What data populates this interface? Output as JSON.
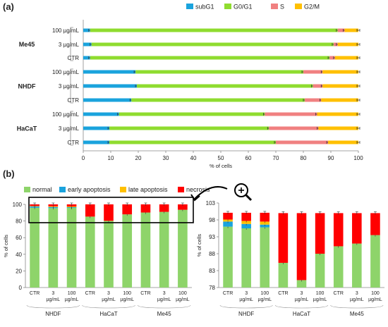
{
  "chart_data": [
    {
      "panel": "(a)",
      "type": "bar",
      "orientation": "horizontal",
      "stacked": true,
      "xlabel": "% of cells",
      "xlim": [
        0,
        100
      ],
      "xticks": [
        0,
        10,
        20,
        30,
        40,
        50,
        60,
        70,
        80,
        90,
        100
      ],
      "legend_position": "top",
      "groups": [
        {
          "name": "Me45",
          "categories": [
            "100 µg/mL",
            "3 µg/mL",
            "CTR"
          ]
        },
        {
          "name": "NHDF",
          "categories": [
            "100 µg/mL",
            "3 µg/mL",
            "CTR"
          ]
        },
        {
          "name": "HaCaT",
          "categories": [
            "100 µg/mL",
            "3 µg/mL",
            "CTR"
          ]
        }
      ],
      "series": [
        {
          "name": "subG1",
          "color": "#1aa3dd",
          "values": [
            2.5,
            3,
            2.5,
            19,
            19.5,
            17.5,
            13,
            9.5,
            9.5
          ]
        },
        {
          "name": "G0/G1",
          "color": "#8fdc2f",
          "values": [
            90,
            88,
            87,
            61,
            64,
            63,
            53,
            58,
            60.5
          ]
        },
        {
          "name": "S",
          "color": "#f08080",
          "values": [
            2.5,
            1.5,
            2,
            7,
            3.5,
            6,
            19,
            18,
            19
          ]
        },
        {
          "name": "G2/M",
          "color": "#ffc000",
          "values": [
            5,
            7.5,
            8.5,
            13,
            13,
            13.5,
            15,
            14.5,
            11
          ]
        }
      ]
    },
    {
      "panel": "(b)",
      "type": "bar",
      "stacked": true,
      "ylabel": "% of cells",
      "ylim": [
        0,
        100
      ],
      "yticks": [
        0,
        20,
        40,
        60,
        80,
        100
      ],
      "legend_position": "top",
      "categories": [
        "CTR",
        "3 µg/mL",
        "100 µg/mL",
        "CTR",
        "3 µg/mL",
        "100 µg/mL",
        "CTR",
        "3 µg/mL",
        "100 µg/mL"
      ],
      "groups": [
        "NHDF",
        "HaCaT",
        "Me45"
      ],
      "series": [
        {
          "name": "normal",
          "color": "#8ed46a",
          "values": [
            96,
            95.5,
            95.8,
            85.3,
            80.2,
            88,
            90.2,
            91,
            93.5
          ]
        },
        {
          "name": "early apoptosis",
          "color": "#1aa3dd",
          "values": [
            1.5,
            1.3,
            0.8,
            0,
            0,
            0,
            0,
            0,
            0
          ]
        },
        {
          "name": "late apoptosis",
          "color": "#ffc000",
          "values": [
            0.6,
            0.9,
            0.9,
            0,
            0,
            0,
            0,
            0,
            0
          ]
        },
        {
          "name": "necrosis",
          "color": "#ff0000",
          "values": [
            2.0,
            2.4,
            2.6,
            14.7,
            19.8,
            12.0,
            9.8,
            9.0,
            6.5
          ]
        }
      ]
    },
    {
      "panel": "(b) zoom",
      "type": "bar",
      "stacked": true,
      "ylabel": "% of cells",
      "ylim": [
        78,
        103
      ],
      "yticks": [
        78,
        83,
        88,
        93,
        98,
        103
      ],
      "categories": [
        "CTR",
        "3 µg/mL",
        "100 µg/mL",
        "CTR",
        "3 µg/mL",
        "100 µg/mL",
        "CTR",
        "3 µg/mL",
        "100 µg/mL"
      ],
      "groups": [
        "NHDF",
        "HaCaT",
        "Me45"
      ]
    }
  ]
}
